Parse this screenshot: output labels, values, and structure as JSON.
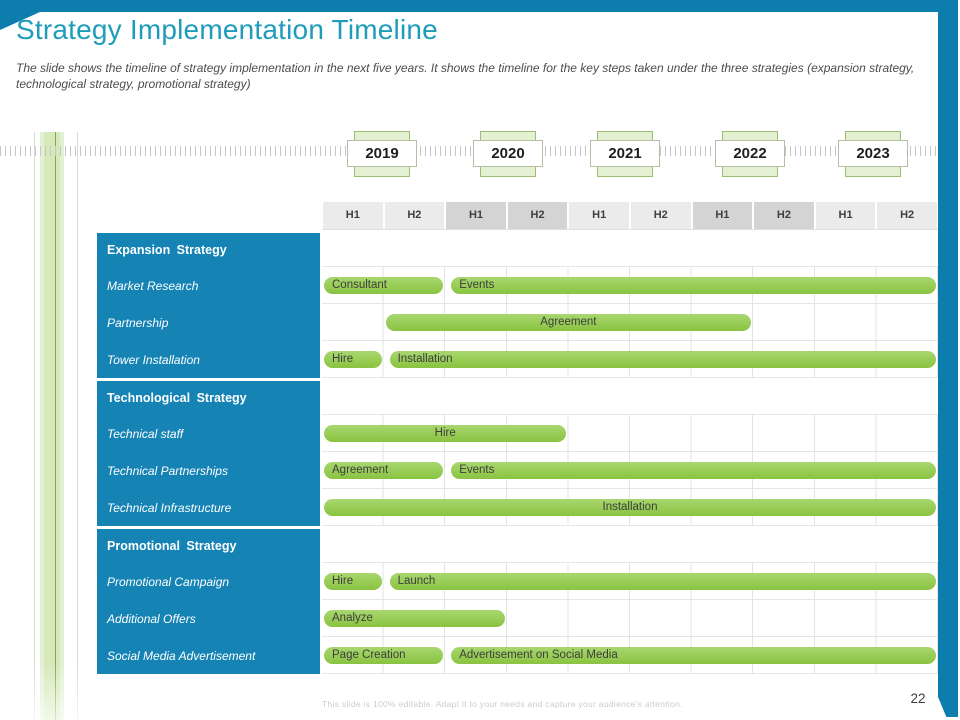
{
  "slide": {
    "title": "Strategy Implementation Timeline",
    "subtitle": "The slide shows the timeline of strategy implementation in the next five years. It shows the timeline for the key steps taken under the three strategies (expansion strategy, technological strategy, promotional strategy)",
    "footnote": "This slide is 100% editable. Adapt it to your needs and capture your audience's attention.",
    "page_number": "22"
  },
  "colors": {
    "accent_teal": "#1f9cba",
    "banner_teal": "#0d7dad",
    "row_label_blue": "#1583b4",
    "bar_green": "#8ac341",
    "marker_fill": "#e4f0d2",
    "marker_border": "#9cbd72",
    "header_cell_light": "#ebebeb",
    "header_cell_dark": "#d4d4d4"
  },
  "chart_data": {
    "type": "bar",
    "subtype": "gantt",
    "title": "Strategy Implementation Timeline",
    "x_axis_years": [
      "2019",
      "2020",
      "2021",
      "2022",
      "2023"
    ],
    "half_labels": [
      "H1",
      "H2"
    ],
    "x_unit": "half-year columns, 0 = start of H1 2019, 10 = end of H2 2023",
    "legend": "none",
    "grid": true,
    "rows": [
      {
        "type": "section",
        "label": "Expansion Strategy",
        "bars": []
      },
      {
        "type": "task",
        "label": "Market Research",
        "bars": [
          {
            "label": "Consultant",
            "start": 0,
            "end": 2,
            "align": "left",
            "gap_before": false
          },
          {
            "label": "Events",
            "start": 2,
            "end": 10,
            "align": "left",
            "gap_before": true
          }
        ]
      },
      {
        "type": "task",
        "label": "Partnership",
        "bars": [
          {
            "label": "Agreement",
            "start": 1,
            "end": 7,
            "align": "center",
            "gap_before": false
          }
        ]
      },
      {
        "type": "task",
        "label": "Tower Installation",
        "bars": [
          {
            "label": "Hire",
            "start": 0,
            "end": 1,
            "align": "left",
            "gap_before": false
          },
          {
            "label": "Installation",
            "start": 1,
            "end": 10,
            "align": "left",
            "gap_before": true
          }
        ]
      },
      {
        "type": "section",
        "label": "Technological Strategy",
        "bars": []
      },
      {
        "type": "task",
        "label": "Technical staff",
        "bars": [
          {
            "label": "Hire",
            "start": 0,
            "end": 4,
            "align": "center",
            "gap_before": false
          }
        ]
      },
      {
        "type": "task",
        "label": "Technical Partnerships",
        "bars": [
          {
            "label": "Agreement",
            "start": 0,
            "end": 2,
            "align": "left",
            "gap_before": false
          },
          {
            "label": "Events",
            "start": 2,
            "end": 10,
            "align": "left",
            "gap_before": true
          }
        ]
      },
      {
        "type": "task",
        "label": "Technical Infrastructure",
        "bars": [
          {
            "label": "Installation",
            "start": 0,
            "end": 10,
            "align": "center",
            "gap_before": false
          }
        ]
      },
      {
        "type": "section",
        "label": "Promotional Strategy",
        "bars": []
      },
      {
        "type": "task",
        "label": "Promotional Campaign",
        "bars": [
          {
            "label": "Hire",
            "start": 0,
            "end": 1,
            "align": "left",
            "gap_before": false
          },
          {
            "label": "Launch",
            "start": 1,
            "end": 10,
            "align": "left",
            "gap_before": true
          }
        ]
      },
      {
        "type": "task",
        "label": "Additional Offers",
        "bars": [
          {
            "label": "Analyze",
            "start": 0,
            "end": 3,
            "align": "left",
            "gap_before": false
          }
        ]
      },
      {
        "type": "task",
        "label": "Social Media Advertisement",
        "bars": [
          {
            "label": "Page Creation",
            "start": 0,
            "end": 2,
            "align": "left",
            "gap_before": false
          },
          {
            "label": "Advertisement on Social Media",
            "start": 2,
            "end": 10,
            "align": "left",
            "gap_before": true
          }
        ]
      }
    ]
  }
}
